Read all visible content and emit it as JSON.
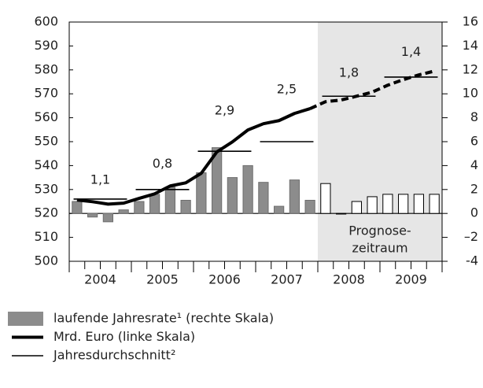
{
  "chart_data": {
    "type": "combo",
    "x": [
      2004.125,
      2004.375,
      2004.625,
      2004.875,
      2005.125,
      2005.375,
      2005.625,
      2005.875,
      2006.125,
      2006.375,
      2006.625,
      2006.875,
      2007.125,
      2007.375,
      2007.625,
      2007.875,
      2008.125,
      2008.375,
      2008.625,
      2008.875,
      2009.125,
      2009.375,
      2009.625,
      2009.875
    ],
    "xlim": [
      2004,
      2010
    ],
    "xticks": [
      {
        "value": 2004.5,
        "label": "2004"
      },
      {
        "value": 2005.5,
        "label": "2005"
      },
      {
        "value": 2006.5,
        "label": "2006"
      },
      {
        "value": 2007.5,
        "label": "2007"
      },
      {
        "value": 2008.5,
        "label": "2008"
      },
      {
        "value": 2009.5,
        "label": "2009"
      }
    ],
    "ylim": [
      500,
      600
    ],
    "yticks": [
      500,
      510,
      520,
      530,
      540,
      550,
      560,
      570,
      580,
      590,
      600
    ],
    "y2lim": [
      -4,
      16
    ],
    "y2ticks": [
      -4,
      {
        "value": -2,
        "label": "–2"
      },
      0,
      2,
      4,
      6,
      8,
      10,
      12,
      14,
      16
    ],
    "grid": false,
    "shade": {
      "from": 2008,
      "to": 2010,
      "label": [
        "Prognose-",
        "zeitraum"
      ],
      "color": "#e6e6e6"
    },
    "series": [
      {
        "name": "laufende Jahresrate¹ (rechte Skala)",
        "type": "bar",
        "axis": "y2",
        "color": "#8c8c8c",
        "values": [
          1.0,
          -0.3,
          -0.7,
          0.3,
          1.0,
          1.6,
          2.2,
          1.1,
          3.4,
          5.5,
          3.0,
          4.0,
          2.6,
          0.6,
          2.8,
          1.1,
          2.5,
          0,
          1.0,
          1.4,
          1.6,
          1.6,
          1.6,
          1.6
        ]
      },
      {
        "name": "Mrd. Euro (linke Skala)",
        "type": "line",
        "color": "#000000",
        "values": [
          525.6,
          524.9,
          523.9,
          524.3,
          526.3,
          528.2,
          531.5,
          532.8,
          536.8,
          545.7,
          549.9,
          554.9,
          557.5,
          558.8,
          561.8,
          563.8,
          566.7,
          567.4,
          569.0,
          570.7,
          573.6,
          575.9,
          577.9,
          579.5
        ]
      },
      {
        "name": "Jahresdurchschnitt²",
        "type": "segment",
        "color": "#000000",
        "x": [
          2004.5,
          2005.5,
          2006.5,
          2007.5,
          2008.5,
          2009.5
        ],
        "values": [
          526,
          530,
          546,
          550,
          569,
          577
        ],
        "value_labels": [
          "1,1",
          "0,8",
          "2,9",
          "2,5",
          "1,8",
          "1,4"
        ]
      }
    ]
  }
}
